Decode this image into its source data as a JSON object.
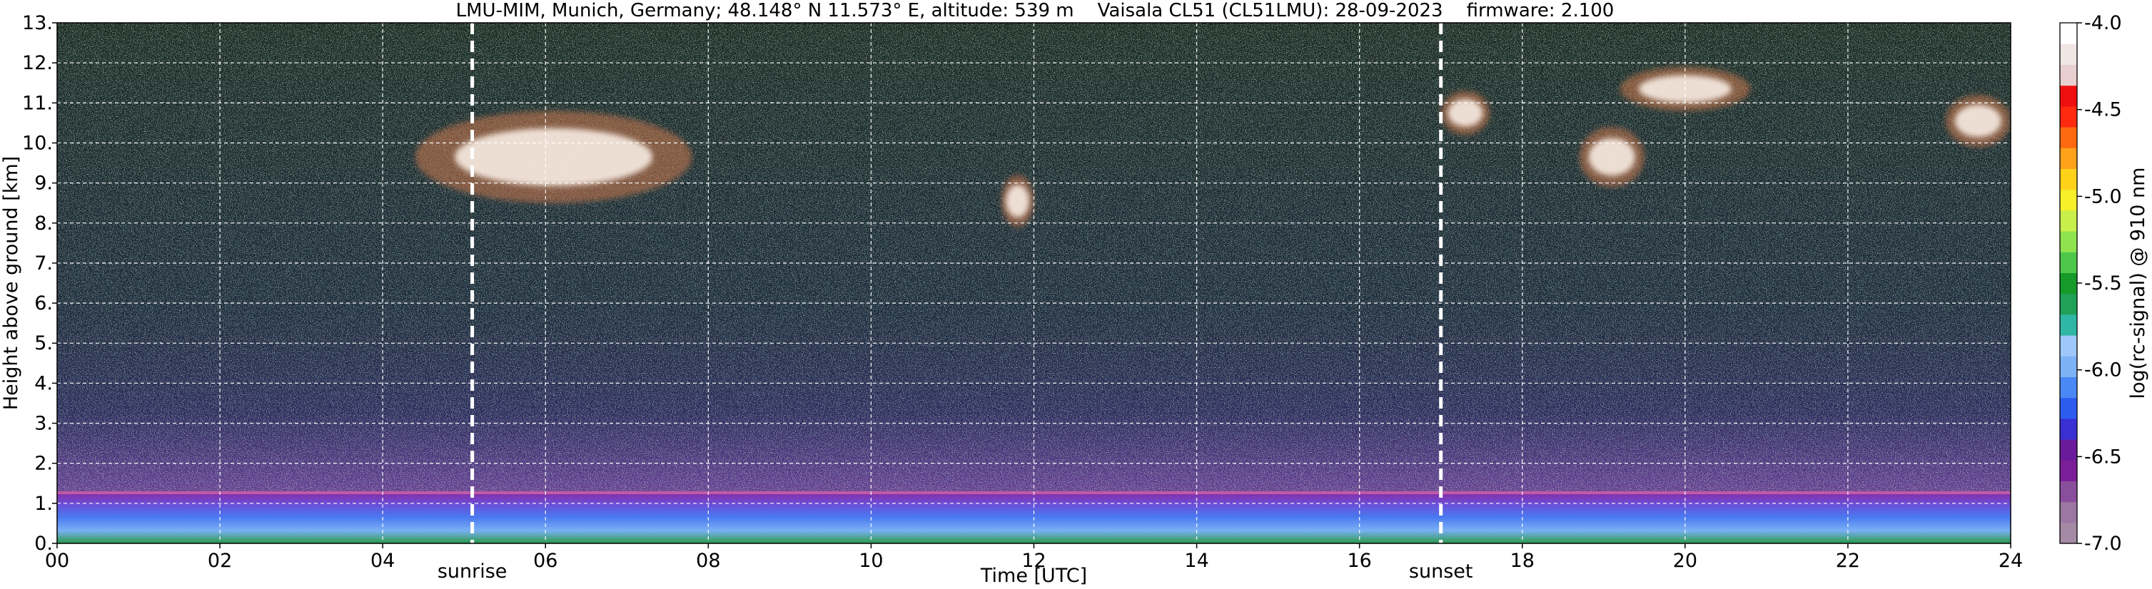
{
  "chart_data": {
    "type": "heatmap",
    "title": "LMU-MIM, Munich, Germany; 48.148° N 11.573° E, altitude: 539 m    Vaisala CL51 (CL51LMU): 28-09-2023    firmware: 2.100",
    "xlabel": "Time [UTC]",
    "ylabel": "Height above ground [km]",
    "xlim": [
      0,
      24
    ],
    "ylim": [
      0,
      13
    ],
    "x_ticks": [
      0,
      2,
      4,
      6,
      8,
      10,
      12,
      14,
      16,
      18,
      20,
      22,
      24
    ],
    "x_tick_labels": [
      "00",
      "02",
      "04",
      "06",
      "08",
      "10",
      "12",
      "14",
      "16",
      "18",
      "20",
      "22",
      "24"
    ],
    "y_ticks": [
      0,
      1,
      2,
      3,
      4,
      5,
      6,
      7,
      8,
      9,
      10,
      11,
      12,
      13
    ],
    "y_tick_labels": [
      "0.",
      "1.",
      "2.",
      "3.",
      "4.",
      "5.",
      "6.",
      "7.",
      "8.",
      "9.",
      "10.",
      "11.",
      "12.",
      "13."
    ],
    "grid": true,
    "vertical_markers": [
      {
        "label": "sunrise",
        "x": 5.1
      },
      {
        "label": "sunset",
        "x": 17.0
      }
    ],
    "colorbar": {
      "label": "log(rc-signal) @ 910 nm",
      "min": -7.0,
      "max": -4.0,
      "ticks": [
        -7.0,
        -6.5,
        -6.0,
        -5.5,
        -5.0,
        -4.5,
        -4.0
      ],
      "tick_labels": [
        "-7.0",
        "-6.5",
        "-6.0",
        "-5.5",
        "-5.0",
        "-4.5",
        "-4.0"
      ],
      "colors_bottom_to_top": [
        "#a58aa5",
        "#9c77a3",
        "#8a4f9c",
        "#7a1f98",
        "#6a1a9a",
        "#3a2fd2",
        "#2d5bf0",
        "#4a88f5",
        "#7eb2f7",
        "#9ec7fa",
        "#2fb6a5",
        "#1fa15a",
        "#169a2a",
        "#4ec84a",
        "#8fe34f",
        "#c8ef4a",
        "#f5f02a",
        "#ffd21a",
        "#ffa21a",
        "#ff6a10",
        "#ff2a10",
        "#f00f0f",
        "#e9cfcf",
        "#f1e6e6",
        "#ffffff"
      ]
    },
    "features": [
      {
        "name": "boundary layer aerosol",
        "x_range": [
          0,
          24
        ],
        "height_range": [
          0,
          1.3
        ]
      },
      {
        "name": "cirrus cloud",
        "x_range": [
          4.4,
          7.8
        ],
        "height_range": [
          8.5,
          10.8
        ]
      },
      {
        "name": "cirrus cloud",
        "x_range": [
          11.6,
          12.0
        ],
        "height_range": [
          7.9,
          9.2
        ]
      },
      {
        "name": "cirrus cloud",
        "x_range": [
          17.0,
          17.6
        ],
        "height_range": [
          10.2,
          11.3
        ]
      },
      {
        "name": "cirrus cloud",
        "x_range": [
          18.7,
          19.5
        ],
        "height_range": [
          8.9,
          10.4
        ]
      },
      {
        "name": "cirrus cloud",
        "x_range": [
          19.2,
          20.8
        ],
        "height_range": [
          10.8,
          11.9
        ]
      },
      {
        "name": "cirrus cloud",
        "x_range": [
          23.2,
          24.0
        ],
        "height_range": [
          9.9,
          11.2
        ]
      }
    ]
  }
}
